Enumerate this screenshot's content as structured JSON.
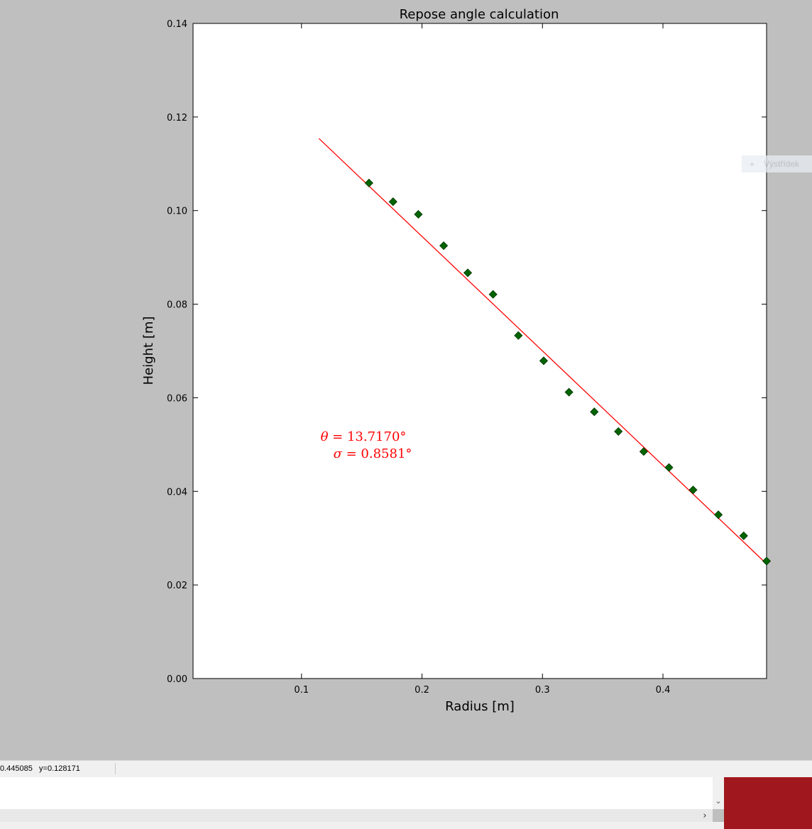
{
  "chart_data": {
    "type": "scatter",
    "title": "Repose angle calculation",
    "xlabel": "Radius [m]",
    "ylabel": "Height [m]",
    "xlim": [
      0.01,
      0.486
    ],
    "ylim": [
      0.0,
      0.14
    ],
    "xticks": [
      "0.1",
      "0.2",
      "0.3",
      "0.4"
    ],
    "yticks": [
      "0.00",
      "0.02",
      "0.04",
      "0.06",
      "0.08",
      "0.10",
      "0.12",
      "0.14"
    ],
    "grid": false,
    "points_color": "#006400",
    "line_color": "#ff0000",
    "points": [
      {
        "x": 0.156,
        "y": 0.1059
      },
      {
        "x": 0.176,
        "y": 0.1019
      },
      {
        "x": 0.197,
        "y": 0.0992
      },
      {
        "x": 0.218,
        "y": 0.0925
      },
      {
        "x": 0.238,
        "y": 0.0867
      },
      {
        "x": 0.259,
        "y": 0.0821
      },
      {
        "x": 0.28,
        "y": 0.0733
      },
      {
        "x": 0.301,
        "y": 0.0679
      },
      {
        "x": 0.322,
        "y": 0.0612
      },
      {
        "x": 0.343,
        "y": 0.057
      },
      {
        "x": 0.363,
        "y": 0.0528
      },
      {
        "x": 0.384,
        "y": 0.0485
      },
      {
        "x": 0.405,
        "y": 0.0451
      },
      {
        "x": 0.425,
        "y": 0.0403
      },
      {
        "x": 0.446,
        "y": 0.035
      },
      {
        "x": 0.467,
        "y": 0.0305
      },
      {
        "x": 0.486,
        "y": 0.0251
      }
    ],
    "fit_line": {
      "x": [
        0.1145,
        0.486
      ],
      "y": [
        0.1154,
        0.0245
      ]
    },
    "annotation": {
      "theta_symbol": "θ",
      "theta_text": " = 13.7170°",
      "sigma_symbol": "σ",
      "sigma_text": " = 0.8581°"
    }
  },
  "legend_fragment": {
    "label": "Výstřídek"
  },
  "statusbar": {
    "coords": "0.445085   y=0.128171"
  },
  "colors": {
    "background": "#bfbfbf",
    "accent_block": "#a0181d"
  },
  "scroll": {
    "down_arrow": "⌄",
    "right_arrow": "›"
  }
}
